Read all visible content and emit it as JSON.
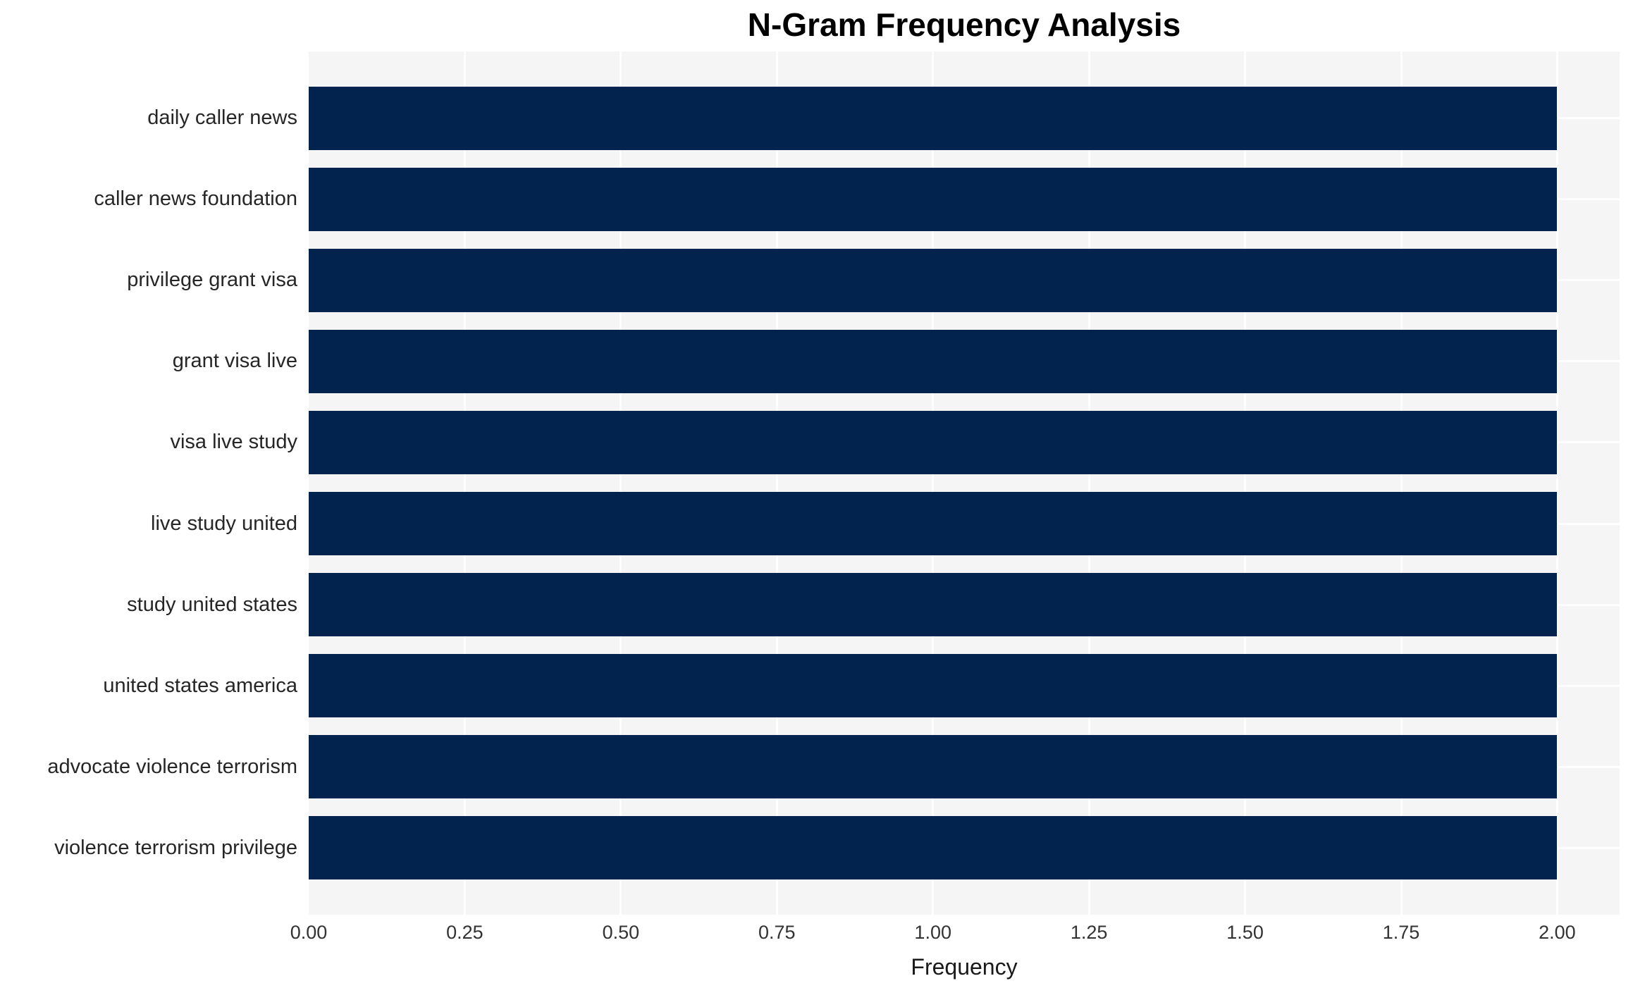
{
  "chart_data": {
    "type": "bar",
    "orientation": "horizontal",
    "title": "N-Gram Frequency Analysis",
    "xlabel": "Frequency",
    "ylabel": "",
    "categories": [
      "daily caller news",
      "caller news foundation",
      "privilege grant visa",
      "grant visa live",
      "visa live study",
      "live study united",
      "study united states",
      "united states america",
      "advocate violence terrorism",
      "violence terrorism privilege"
    ],
    "values": [
      2,
      2,
      2,
      2,
      2,
      2,
      2,
      2,
      2,
      2
    ],
    "xlim": [
      0,
      2.1
    ],
    "xticks": [
      {
        "value": 0.0,
        "label": "0.00"
      },
      {
        "value": 0.25,
        "label": "0.25"
      },
      {
        "value": 0.5,
        "label": "0.50"
      },
      {
        "value": 0.75,
        "label": "0.75"
      },
      {
        "value": 1.0,
        "label": "1.00"
      },
      {
        "value": 1.25,
        "label": "1.25"
      },
      {
        "value": 1.5,
        "label": "1.50"
      },
      {
        "value": 1.75,
        "label": "1.75"
      },
      {
        "value": 2.0,
        "label": "2.00"
      }
    ],
    "grid": true,
    "legend_visible": false,
    "colors": {
      "bar": "#03234f",
      "plot_background": "#f5f5f5",
      "gridline": "#ffffff",
      "figure_background": "#ffffff",
      "title_text": "#000000",
      "tick_text": "#333333",
      "category_label_text": "#262626"
    }
  }
}
